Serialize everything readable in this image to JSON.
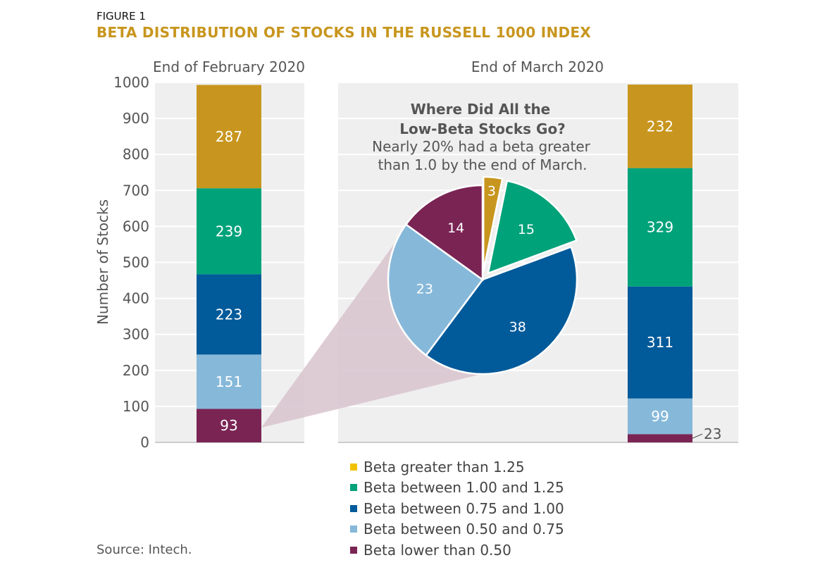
{
  "figure_label": "FIGURE 1",
  "title": "BETA DISTRIBUTION OF STOCKS IN THE RUSSELL 1000 INDEX",
  "source": "Source: Intech.",
  "colors": {
    "beta_gt_125": "#c8961e",
    "beta_100_125": "#00a27a",
    "beta_075_100": "#015a99",
    "beta_050_075": "#86b8d9",
    "beta_lt_050": "#7a2454",
    "legend_gt_125": "#f2c200",
    "panel_bg": "#efefef",
    "title": "#c8961e"
  },
  "legend": [
    {
      "label": "Beta greater than 1.25",
      "color": "#f2c200"
    },
    {
      "label": "Beta between 1.00 and 1.25",
      "color": "#00a27a"
    },
    {
      "label": "Beta between 0.75 and 1.00",
      "color": "#015a99"
    },
    {
      "label": "Beta between 0.50 and 0.75",
      "color": "#86b8d9"
    },
    {
      "label": "Beta lower than 0.50",
      "color": "#7a2454"
    }
  ],
  "pie_heading": [
    "Where Did All the",
    "Low-Beta Stocks Go?"
  ],
  "pie_subheading": [
    "Nearly 20% had a beta greater",
    "than 1.0 by the end of March."
  ],
  "chart_data": [
    {
      "type": "bar",
      "stacked": true,
      "title": "End of February 2020",
      "ylabel": "Number of Stocks",
      "ylim": [
        0,
        1000
      ],
      "yticks": [
        0,
        100,
        200,
        300,
        400,
        500,
        600,
        700,
        800,
        900,
        1000
      ],
      "grid": true,
      "categories": [
        "End of February 2020"
      ],
      "series": [
        {
          "name": "Beta lower than 0.50",
          "values": [
            93
          ]
        },
        {
          "name": "Beta between 0.50 and 0.75",
          "values": [
            151
          ]
        },
        {
          "name": "Beta between 0.75 and 1.00",
          "values": [
            223
          ]
        },
        {
          "name": "Beta between 1.00 and 1.25",
          "values": [
            239
          ]
        },
        {
          "name": "Beta greater than 1.25",
          "values": [
            287
          ]
        }
      ]
    },
    {
      "type": "bar",
      "stacked": true,
      "title": "End of March 2020",
      "ylim": [
        0,
        1000
      ],
      "grid": true,
      "categories": [
        "End of March 2020"
      ],
      "series": [
        {
          "name": "Beta lower than 0.50",
          "values": [
            23
          ]
        },
        {
          "name": "Beta between 0.50 and 0.75",
          "values": [
            99
          ]
        },
        {
          "name": "Beta between 0.75 and 1.00",
          "values": [
            311
          ]
        },
        {
          "name": "Beta between 1.00 and 1.25",
          "values": [
            329
          ]
        },
        {
          "name": "Beta greater than 1.25",
          "values": [
            232
          ]
        }
      ]
    },
    {
      "type": "pie",
      "title": "Where Did All the Low-Beta Stocks Go?",
      "slices": [
        {
          "name": "Beta greater than 1.25",
          "value": 3,
          "exploded": true
        },
        {
          "name": "Beta between 1.00 and 1.25",
          "value": 15,
          "exploded": true
        },
        {
          "name": "Beta between 0.75 and 1.00",
          "value": 38,
          "exploded": false
        },
        {
          "name": "Beta between 0.50 and 0.75",
          "value": 23,
          "exploded": false
        },
        {
          "name": "Beta lower than 0.50",
          "value": 14,
          "exploded": false
        }
      ]
    }
  ]
}
